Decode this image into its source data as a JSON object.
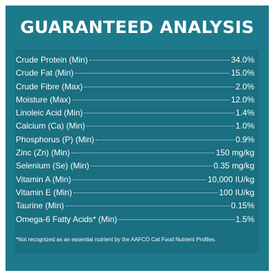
{
  "title": "GUARANTEED ANALYSIS",
  "rows": [
    {
      "label": "Crude Protein (Min)",
      "value": "34.0%"
    },
    {
      "label": "Crude Fat (Min)",
      "value": "15.0%"
    },
    {
      "label": "Crude Fibre (Max)",
      "value": "2.0%"
    },
    {
      "label": "Moisture (Max)",
      "value": "12.0%"
    },
    {
      "label": "Linoleic Acid (Min)",
      "value": "1.4%"
    },
    {
      "label": "Calcium (Ca) (Min)",
      "value": "1.0%"
    },
    {
      "label": "Phosphorus (P) (Min)",
      "value": "0.9%"
    },
    {
      "label": "Zinc (Zn) (Min)",
      "value": "150 mg/kg"
    },
    {
      "label": "Selenium (Se) (Min)",
      "value": "0.35 mg/kg"
    },
    {
      "label": "Vitamin A (Min)",
      "value": "10,000 IU/kg"
    },
    {
      "label": "Vitamin E (Min)",
      "value": "100 IU/kg"
    },
    {
      "label": "Taurine (Min)",
      "value": "0.15%"
    },
    {
      "label": "Omega-6 Fatty Acids* (Min)",
      "value": "1.5%"
    }
  ],
  "footnote": "*Not recognized as an essential nutrient by the AAFCO Cat Food Nutrient Profiles.",
  "colors": {
    "panel": "#1d7a8c",
    "content": "#1a6f80",
    "text": "#ffffff"
  }
}
